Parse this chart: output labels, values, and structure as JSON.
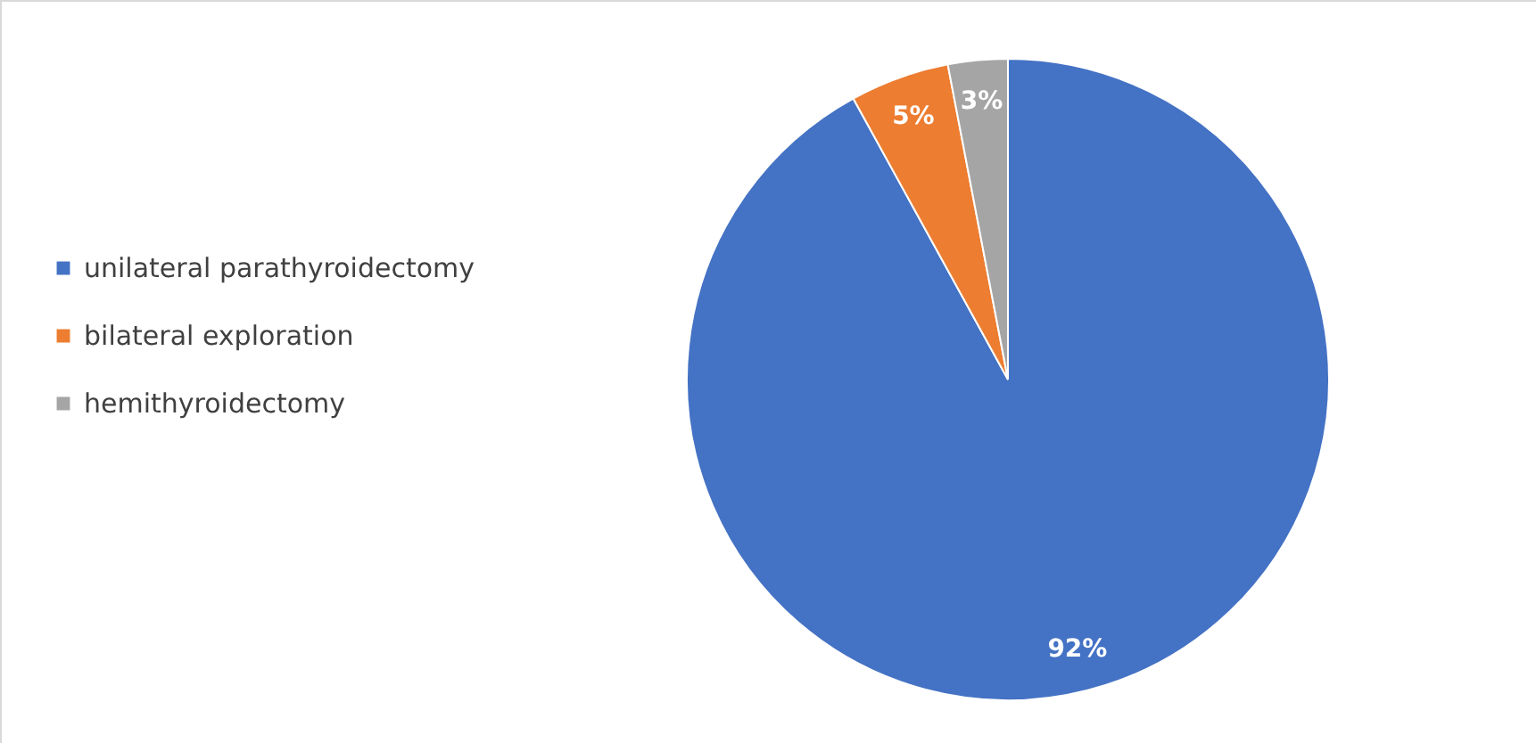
{
  "chart_data": {
    "type": "pie",
    "categories": [
      "unilateral parathyroidectomy",
      "bilateral exploration",
      "hemithyroidectomy"
    ],
    "values": [
      92,
      5,
      3
    ],
    "colors": [
      "#4472c4",
      "#ed7d31",
      "#a5a5a5"
    ],
    "value_labels": [
      "92%",
      "5%",
      "3%"
    ],
    "legend": "left"
  }
}
